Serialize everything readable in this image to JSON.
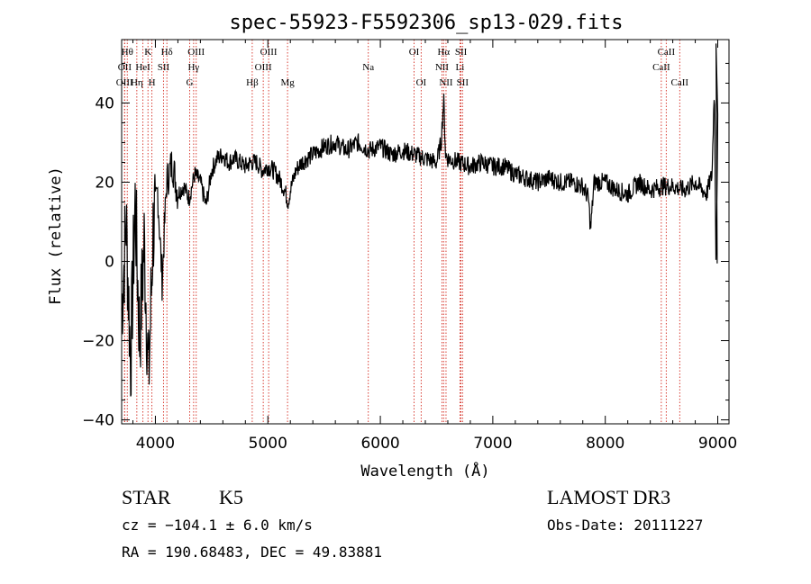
{
  "chart_data": {
    "type": "line",
    "title": "spec-55923-F5592306_sp13-029.fits",
    "xlabel": "Wavelength (Å)",
    "ylabel": "Flux (relative)",
    "xlim": [
      3700,
      9100
    ],
    "ylim": [
      -41,
      56
    ],
    "x_ticks": [
      4000,
      5000,
      6000,
      7000,
      8000,
      9000
    ],
    "y_ticks": [
      -40,
      -20,
      0,
      20,
      40
    ],
    "grid": false,
    "series": [
      {
        "name": "flux",
        "x": [
          3700,
          3740,
          3780,
          3820,
          3860,
          3900,
          3940,
          3980,
          4020,
          4060,
          4100,
          4150,
          4200,
          4250,
          4300,
          4350,
          4400,
          4450,
          4500,
          4550,
          4600,
          4650,
          4700,
          4750,
          4800,
          4850,
          4900,
          4950,
          5000,
          5050,
          5100,
          5150,
          5180,
          5200,
          5250,
          5300,
          5400,
          5500,
          5600,
          5700,
          5800,
          5900,
          6000,
          6100,
          6200,
          6300,
          6400,
          6500,
          6540,
          6563,
          6580,
          6600,
          6700,
          6800,
          6900,
          7000,
          7100,
          7200,
          7300,
          7400,
          7500,
          7600,
          7700,
          7800,
          7850,
          7870,
          7900,
          8000,
          8100,
          8200,
          8300,
          8400,
          8500,
          8600,
          8700,
          8800,
          8900,
          8950,
          8970,
          8985,
          9000
        ],
        "y": [
          -12,
          10,
          -25,
          15,
          -20,
          5,
          -30,
          8,
          18,
          -5,
          20,
          25,
          17,
          19,
          16,
          22,
          20,
          14,
          23,
          26,
          27,
          25,
          26,
          25,
          24,
          25,
          25,
          23,
          24,
          23,
          21,
          18,
          15,
          18,
          23,
          25,
          27,
          29,
          30,
          28,
          30,
          28,
          29,
          27,
          28,
          27,
          26,
          25,
          30,
          41,
          27,
          26,
          25,
          24,
          25,
          24,
          24,
          22,
          21,
          20,
          21,
          20,
          20,
          19,
          16,
          8,
          20,
          20,
          18,
          17,
          20,
          18,
          19,
          19,
          18,
          20,
          17,
          22,
          45,
          -1,
          35
        ]
      }
    ],
    "line_markers": [
      {
        "label": "Hθ",
        "x": 3750,
        "row": 1
      },
      {
        "label": "OII",
        "x": 3727,
        "row": 2
      },
      {
        "label": "OIII",
        "x": 3726,
        "row": 3
      },
      {
        "label": "Hη",
        "x": 3835,
        "row": 3
      },
      {
        "label": "HeI",
        "x": 3889,
        "row": 2
      },
      {
        "label": "K",
        "x": 3934,
        "row": 1
      },
      {
        "label": "H",
        "x": 3969,
        "row": 3
      },
      {
        "label": "SII",
        "x": 4072,
        "row": 2
      },
      {
        "label": "Hδ",
        "x": 4102,
        "row": 1
      },
      {
        "label": "OIII",
        "x": 4363,
        "row": 1
      },
      {
        "label": "Hγ",
        "x": 4340,
        "row": 2
      },
      {
        "label": "G",
        "x": 4305,
        "row": 3
      },
      {
        "label": "Hβ",
        "x": 4861,
        "row": 3
      },
      {
        "label": "OIII",
        "x": 5007,
        "row": 1
      },
      {
        "label": "OIII",
        "x": 4959,
        "row": 2
      },
      {
        "label": "Mg",
        "x": 5175,
        "row": 3
      },
      {
        "label": "Na",
        "x": 5893,
        "row": 2
      },
      {
        "label": "OI",
        "x": 6300,
        "row": 1
      },
      {
        "label": "OI",
        "x": 6363,
        "row": 3
      },
      {
        "label": "Hα",
        "x": 6563,
        "row": 1
      },
      {
        "label": "NII",
        "x": 6548,
        "row": 2
      },
      {
        "label": "NII",
        "x": 6584,
        "row": 3
      },
      {
        "label": "SII",
        "x": 6717,
        "row": 1
      },
      {
        "label": "Li",
        "x": 6708,
        "row": 2
      },
      {
        "label": "SII",
        "x": 6731,
        "row": 3
      },
      {
        "label": "CaII",
        "x": 8542,
        "row": 1
      },
      {
        "label": "CaII",
        "x": 8498,
        "row": 2
      },
      {
        "label": "CaII",
        "x": 8662,
        "row": 3
      }
    ]
  },
  "info": {
    "object_class": "STAR",
    "subclass": "K5",
    "survey": "LAMOST DR3",
    "cz": "cz = −104.1 ± 6.0 km/s",
    "obs_date": "Obs-Date: 20111227",
    "radec": "RA = 190.68483, DEC =  49.83881"
  },
  "colors": {
    "line": "#000000",
    "marker": "#d42a1f",
    "text": "#000000"
  }
}
